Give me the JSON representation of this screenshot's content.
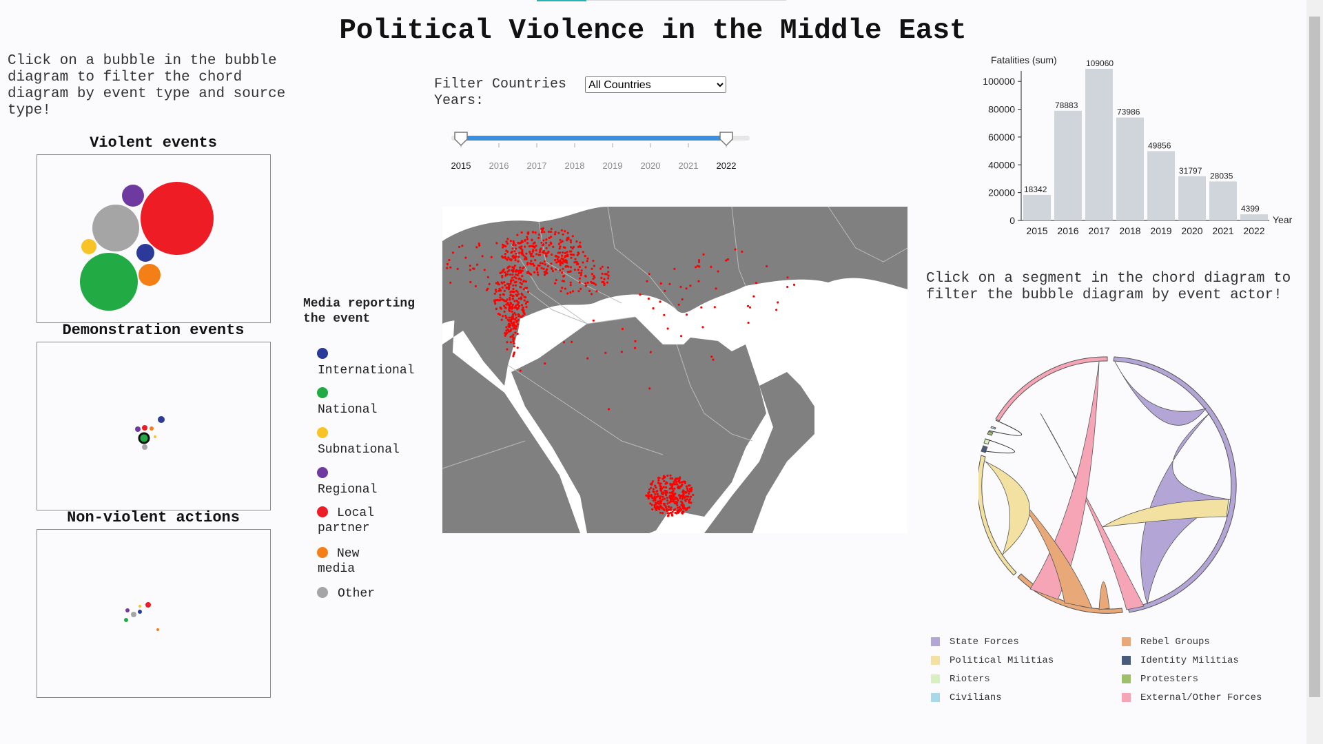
{
  "page": {
    "title": "Political Violence in the Middle East",
    "bubble_instruction": "Click on a bubble in the bubble diagram to filter the chord diagram by event type and source type!",
    "chord_instruction": "Click on a segment in the chord diagram to filter the bubble diagram by event actor!"
  },
  "filters": {
    "country_label": "Filter Countries",
    "country_selected": "All Countries",
    "years_label": "Years:",
    "years": [
      "2015",
      "2016",
      "2017",
      "2018",
      "2019",
      "2020",
      "2021",
      "2022"
    ],
    "range_start": "2015",
    "range_end": "2022"
  },
  "bubble_panels": [
    {
      "title": "Violent events"
    },
    {
      "title": "Demonstration events"
    },
    {
      "title": "Non-violent actions"
    }
  ],
  "media_legend": {
    "title": "Media reporting the event",
    "items": [
      {
        "label": "International",
        "color": "#2b3a98"
      },
      {
        "label": "National",
        "color": "#22aa44"
      },
      {
        "label": "Subnational",
        "color": "#f7c325"
      },
      {
        "label": "Regional",
        "color": "#6e3aa0"
      },
      {
        "label": "Local partner",
        "color": "#ee1c25"
      },
      {
        "label": "New media",
        "color": "#f57f17"
      },
      {
        "label": "Other",
        "color": "#a5a5a5"
      }
    ]
  },
  "chart_data": {
    "type": "bar",
    "title": "",
    "ylabel": "Fatalities (sum)",
    "xlabel": "Year",
    "categories": [
      "2015",
      "2016",
      "2017",
      "2018",
      "2019",
      "2020",
      "2021",
      "2022"
    ],
    "values": [
      18342,
      78883,
      109060,
      73986,
      49856,
      31797,
      28035,
      4399
    ],
    "ylim": [
      0,
      110000
    ],
    "yticks": [
      0,
      20000,
      40000,
      60000,
      80000,
      100000
    ],
    "bar_color": "#d0d4db"
  },
  "chord_legend": [
    {
      "label": "State Forces",
      "color": "#b3a5d6"
    },
    {
      "label": "Rebel Groups",
      "color": "#e8a877"
    },
    {
      "label": "Political Militias",
      "color": "#f2e1a0"
    },
    {
      "label": "Identity Militias",
      "color": "#4a5a7a"
    },
    {
      "label": "Rioters",
      "color": "#d8f0c0"
    },
    {
      "label": "Protesters",
      "color": "#9fc06a"
    },
    {
      "label": "Civilians",
      "color": "#a8d8ea"
    },
    {
      "label": "External/Other Forces",
      "color": "#f5a5b5"
    }
  ],
  "map": {
    "land_color": "#808080",
    "sea_color": "#ffffff",
    "event_color": "#ff0000"
  }
}
